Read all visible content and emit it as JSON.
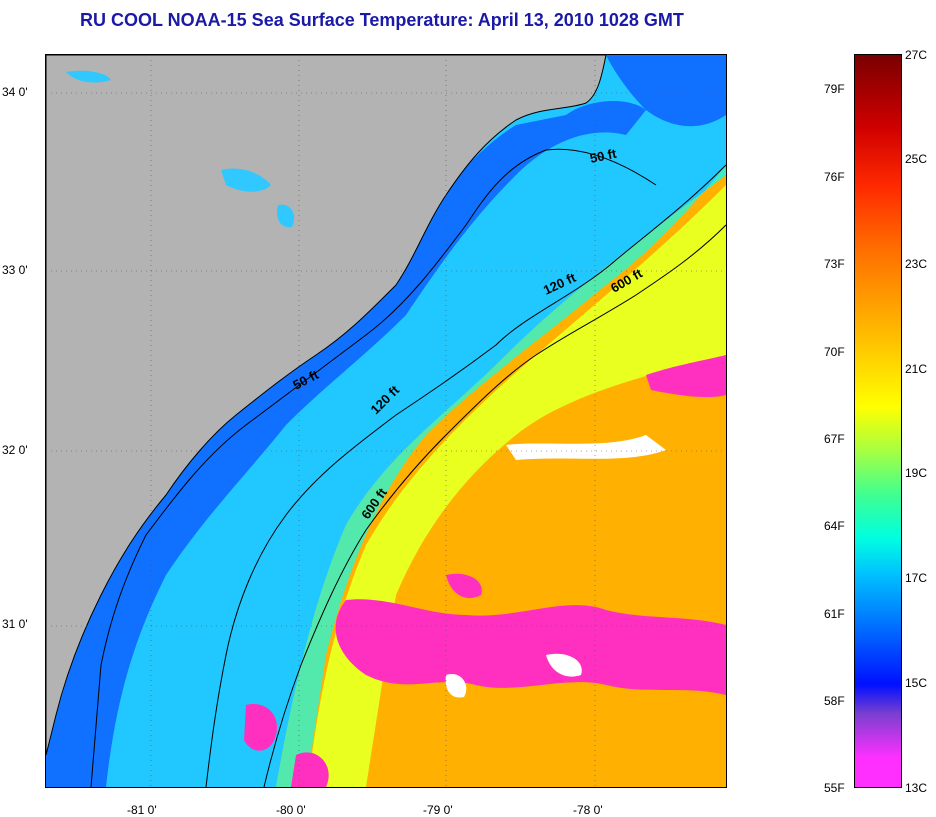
{
  "title": "RU COOL  NOAA-15  Sea Surface Temperature:  April 13, 2010 1028 GMT",
  "lat_ticks": [
    "34 0'",
    "33 0'",
    "32 0'",
    "31 0'"
  ],
  "lon_ticks": [
    "-81 0'",
    "-80 0'",
    "-79 0'",
    "-78 0'"
  ],
  "contours": {
    "c50": "50 ft",
    "c120": "120 ft",
    "c600": "600 ft"
  },
  "colorbar": {
    "fahrenheit": [
      "79F",
      "76F",
      "73F",
      "70F",
      "67F",
      "64F",
      "61F",
      "58F",
      "55F"
    ],
    "celsius": [
      "27C",
      "25C",
      "23C",
      "21C",
      "19C",
      "17C",
      "15C",
      "13C"
    ]
  },
  "colors": {
    "land": "#b3b3b3",
    "title": "#1a1aa6",
    "cloud": "#ff30c0"
  }
}
